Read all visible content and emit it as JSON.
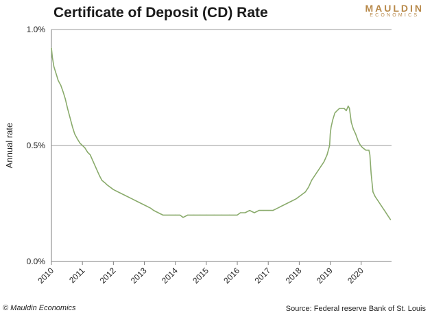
{
  "header": {
    "title": "Certificate of Deposit (CD) Rate",
    "logo_line1": "MAULDIN",
    "logo_line2": "ECONOMICS"
  },
  "footer": {
    "copyright": "© Mauldin Economics",
    "source": "Source: Federal reserve Bank of St. Louis"
  },
  "colors": {
    "line": "#8aab6c",
    "gridline": "#999999",
    "axis": "#7f7f7f",
    "brand": "#b8894a"
  },
  "chart_data": {
    "type": "line",
    "title": "Certificate of Deposit (CD) Rate",
    "xlabel": "",
    "ylabel": "Annual rate",
    "xlim": [
      2010,
      2020.98
    ],
    "ylim": [
      0.0,
      1.0
    ],
    "y_ticks": [
      0.0,
      0.5,
      1.0
    ],
    "y_tick_labels": [
      "0.0%",
      "0.5%",
      "1.0%"
    ],
    "x_ticks": [
      2010,
      2011,
      2012,
      2013,
      2014,
      2015,
      2016,
      2017,
      2018,
      2019,
      2020
    ],
    "x_tick_labels": [
      "2010",
      "2011",
      "2012",
      "2013",
      "2014",
      "2015",
      "2016",
      "2017",
      "2018",
      "2019",
      "2020"
    ],
    "gridlines": "horizontal",
    "legend": "none",
    "series": [
      {
        "x": [
          2010.0,
          2010.03,
          2010.08,
          2010.15,
          2010.22,
          2010.3,
          2010.38,
          2010.45,
          2010.52,
          2010.6,
          2010.68,
          2010.75,
          2010.83,
          2010.92,
          2011.0,
          2011.08,
          2011.17,
          2011.25,
          2011.35,
          2011.45,
          2011.55,
          2011.63,
          2011.72,
          2011.8,
          2011.9,
          2012.0,
          2012.15,
          2012.3,
          2012.45,
          2012.6,
          2012.75,
          2012.9,
          2013.05,
          2013.2,
          2013.3,
          2013.45,
          2013.6,
          2013.8,
          2014.0,
          2014.15,
          2014.25,
          2014.4,
          2014.6,
          2014.8,
          2015.0,
          2015.25,
          2015.5,
          2015.75,
          2016.0,
          2016.1,
          2016.25,
          2016.4,
          2016.55,
          2016.7,
          2016.85,
          2017.0,
          2017.15,
          2017.3,
          2017.45,
          2017.6,
          2017.75,
          2017.9,
          2018.0,
          2018.1,
          2018.2,
          2018.3,
          2018.4,
          2018.5,
          2018.6,
          2018.7,
          2018.8,
          2018.9,
          2018.98,
          2019.0,
          2019.03,
          2019.08,
          2019.15,
          2019.22,
          2019.3,
          2019.38,
          2019.45,
          2019.52,
          2019.58,
          2019.62,
          2019.68,
          2019.75,
          2019.82,
          2019.9,
          2019.98,
          2020.05,
          2020.15,
          2020.25,
          2020.28,
          2020.32,
          2020.38,
          2020.45,
          2020.55,
          2020.65,
          2020.75,
          2020.85,
          2020.95
        ],
        "values": [
          0.92,
          0.88,
          0.84,
          0.81,
          0.78,
          0.76,
          0.73,
          0.7,
          0.66,
          0.62,
          0.58,
          0.55,
          0.53,
          0.51,
          0.5,
          0.49,
          0.47,
          0.46,
          0.43,
          0.4,
          0.37,
          0.35,
          0.34,
          0.33,
          0.32,
          0.31,
          0.3,
          0.29,
          0.28,
          0.27,
          0.26,
          0.25,
          0.24,
          0.23,
          0.22,
          0.21,
          0.2,
          0.2,
          0.2,
          0.2,
          0.19,
          0.2,
          0.2,
          0.2,
          0.2,
          0.2,
          0.2,
          0.2,
          0.2,
          0.21,
          0.21,
          0.22,
          0.21,
          0.22,
          0.22,
          0.22,
          0.22,
          0.23,
          0.24,
          0.25,
          0.26,
          0.27,
          0.28,
          0.29,
          0.3,
          0.32,
          0.35,
          0.37,
          0.39,
          0.41,
          0.43,
          0.46,
          0.5,
          0.55,
          0.58,
          0.61,
          0.64,
          0.65,
          0.66,
          0.66,
          0.66,
          0.65,
          0.67,
          0.66,
          0.6,
          0.57,
          0.55,
          0.52,
          0.5,
          0.49,
          0.48,
          0.48,
          0.46,
          0.38,
          0.3,
          0.28,
          0.26,
          0.24,
          0.22,
          0.2,
          0.18
        ]
      }
    ]
  }
}
